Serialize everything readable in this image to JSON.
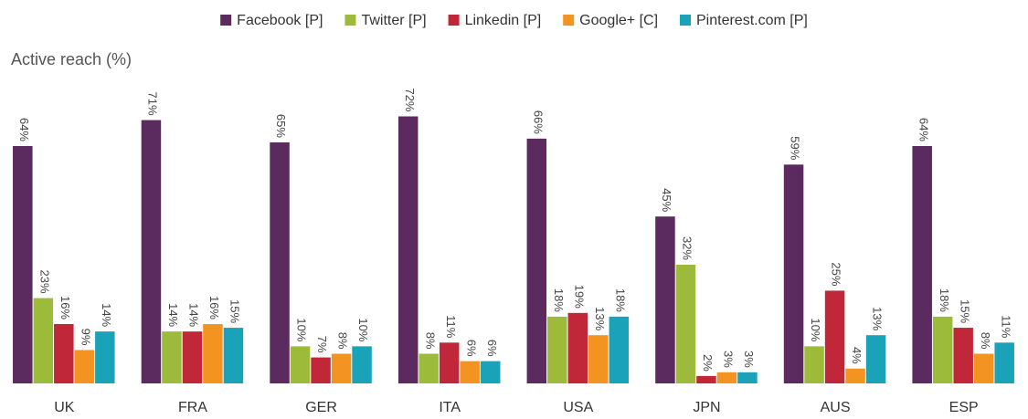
{
  "chart_data": {
    "type": "bar",
    "y_label": "Active reach (%)",
    "categories": [
      "UK",
      "FRA",
      "GER",
      "ITA",
      "USA",
      "JPN",
      "AUS",
      "ESP"
    ],
    "series": [
      {
        "name": "Facebook [P]",
        "color": "#5b2a5e",
        "values": [
          64,
          71,
          65,
          72,
          66,
          45,
          59,
          64
        ],
        "value_labels": [
          "64%",
          "71%",
          "65%",
          "72%",
          "66%",
          "45%",
          "59%",
          "64%"
        ]
      },
      {
        "name": "Twitter [P]",
        "color": "#9dbb3b",
        "values": [
          23,
          14,
          10,
          8,
          18,
          32,
          10,
          18
        ],
        "value_labels": [
          "23%",
          "14%",
          "10%",
          "8%",
          "18%",
          "32%",
          "10%",
          "18%"
        ]
      },
      {
        "name": "Linkedin [P]",
        "color": "#c0283a",
        "values": [
          16,
          14,
          7,
          11,
          19,
          2,
          25,
          15
        ],
        "value_labels": [
          "16%",
          "14%",
          "7%",
          "11%",
          "19%",
          "2%",
          "25%",
          "15%"
        ]
      },
      {
        "name": "Google+ [C]",
        "color": "#f39322",
        "values": [
          9,
          16,
          8,
          6,
          13,
          3,
          4,
          8
        ],
        "value_labels": [
          "9%",
          "16%",
          "8%",
          "6%",
          "13%",
          "3%",
          "4%",
          "8%"
        ]
      },
      {
        "name": "Pinterest.com [P]",
        "color": "#1aa3b8",
        "values": [
          14,
          15,
          10,
          6,
          18,
          3,
          13,
          11
        ],
        "value_labels": [
          "14%",
          "15%",
          "10%",
          "6%",
          "18%",
          "3%",
          "13%",
          "11%"
        ]
      }
    ],
    "ylim": [
      0,
      80
    ],
    "legend": "top"
  }
}
